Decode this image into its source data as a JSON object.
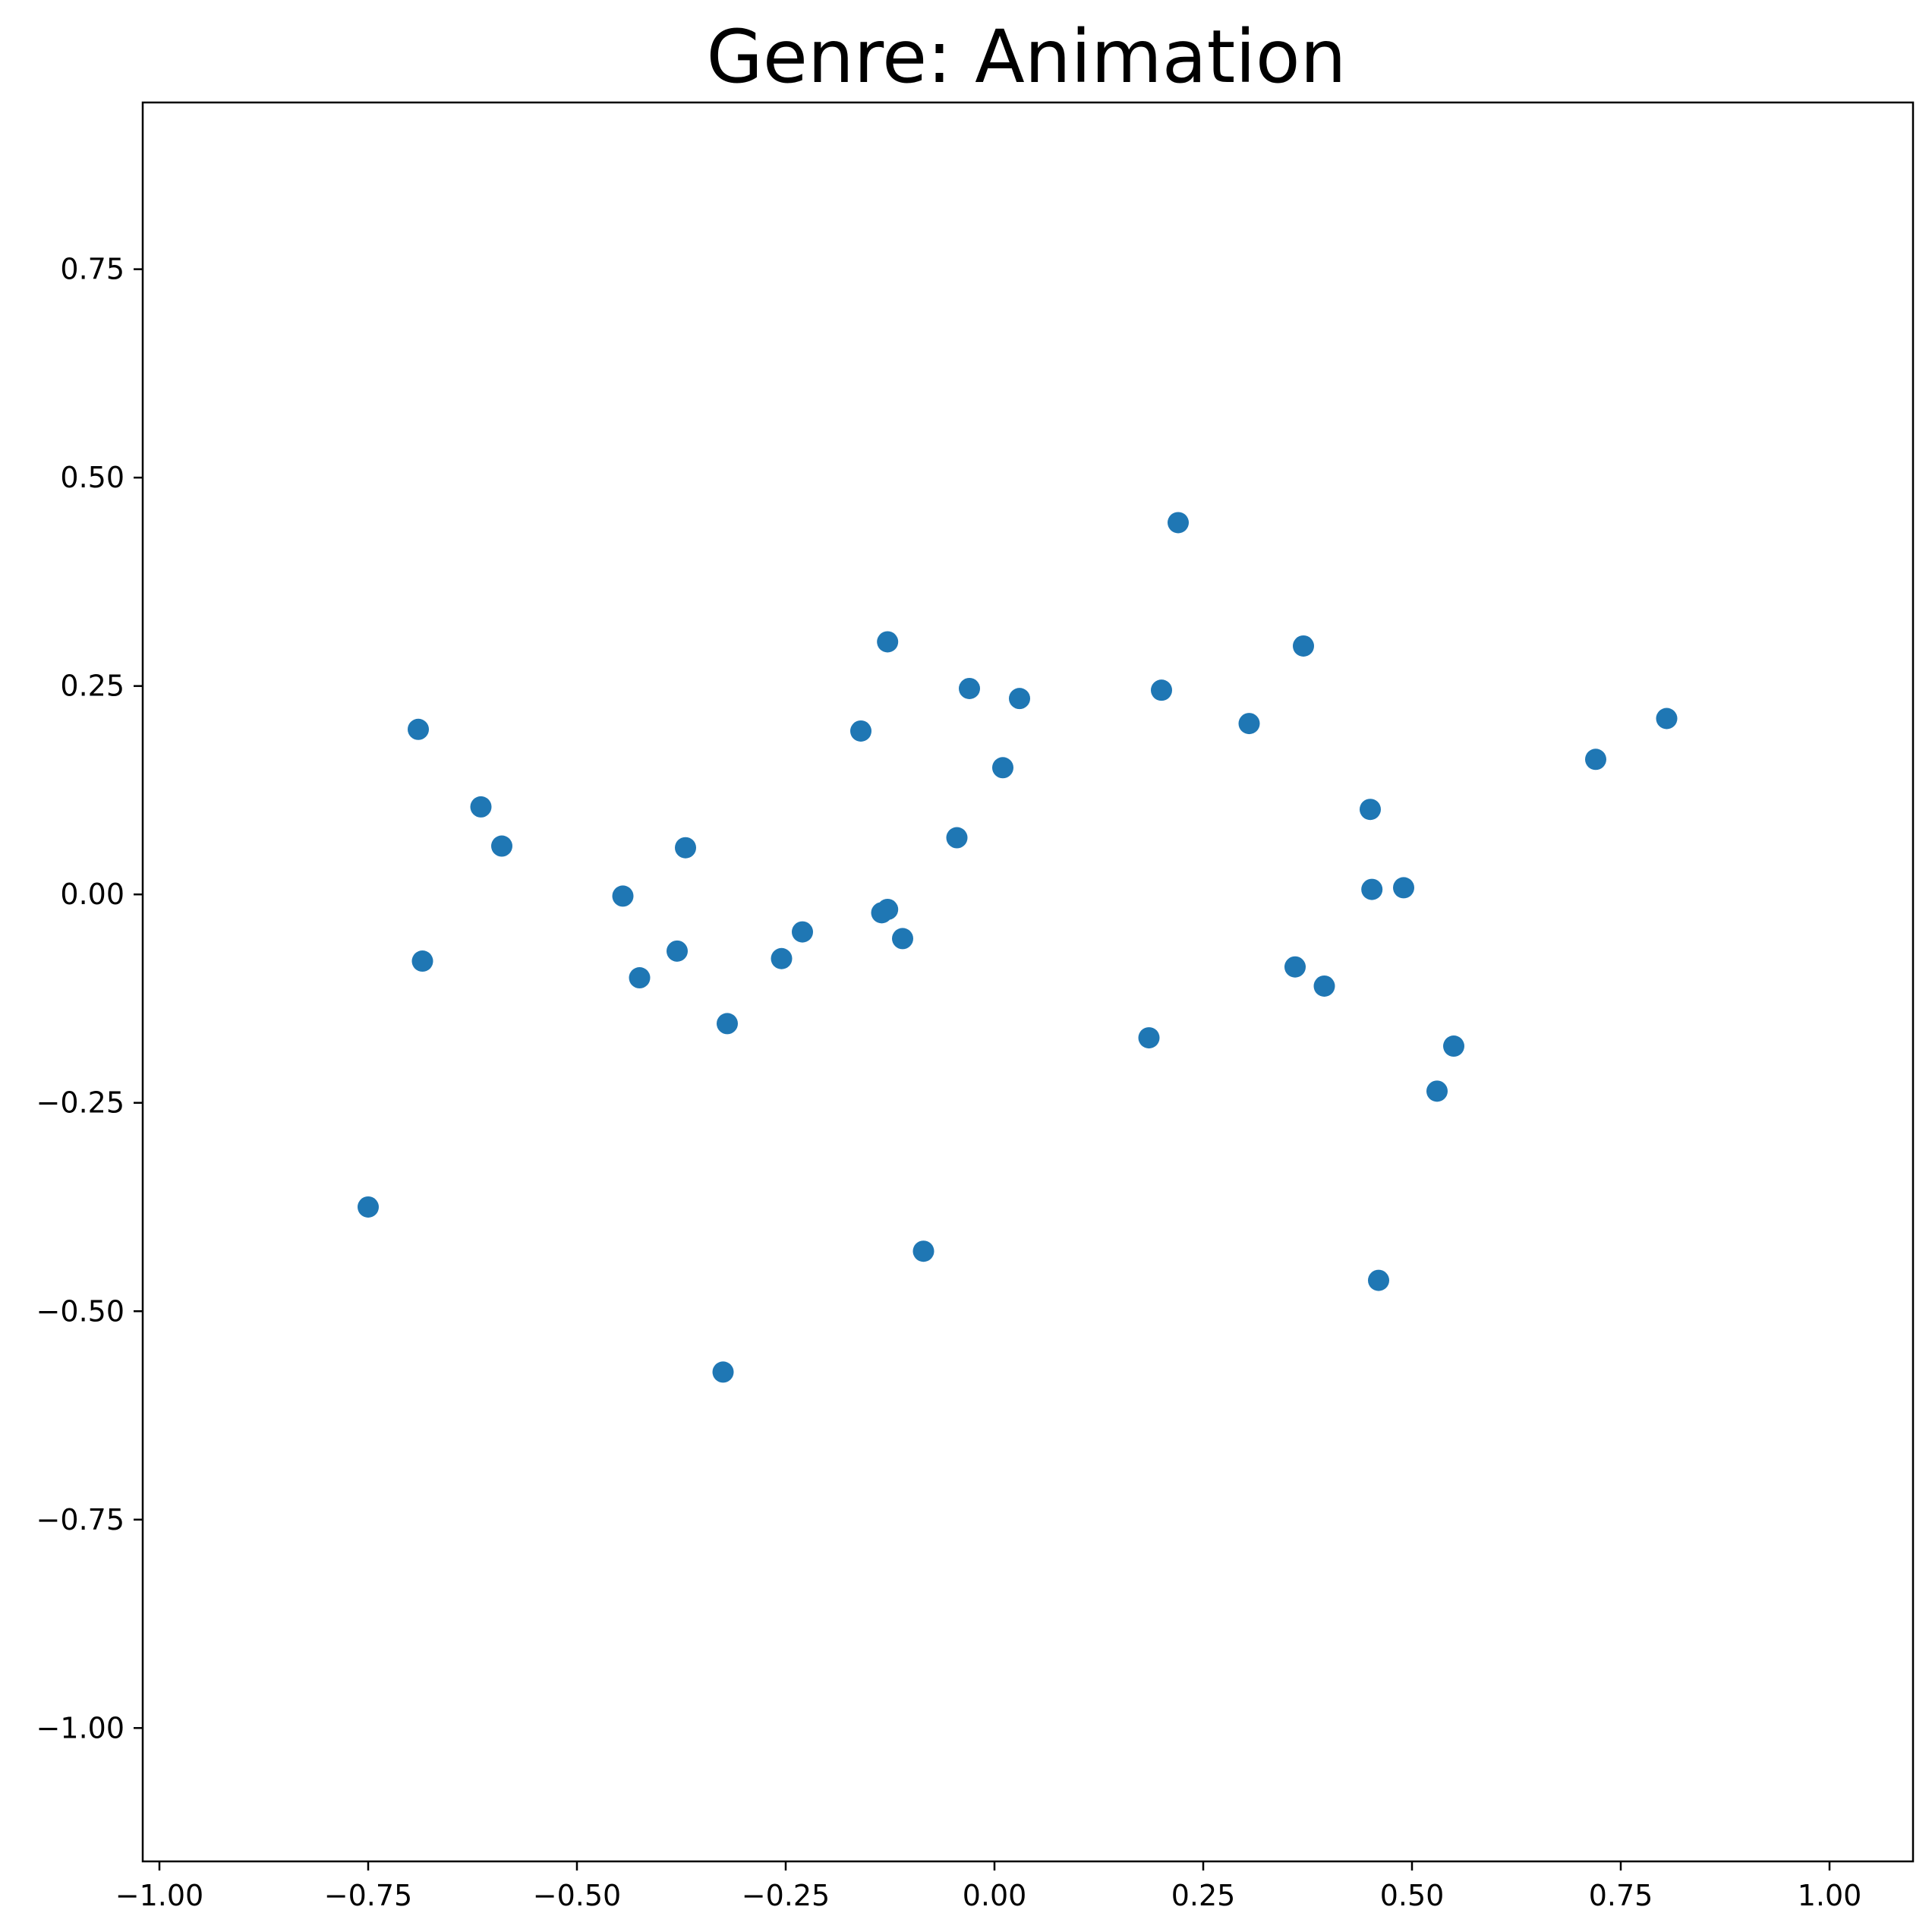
{
  "chart_data": {
    "type": "scatter",
    "title": "Genre: Animation",
    "xlabel": "",
    "ylabel": "",
    "xlim": [
      -1.02,
      1.1
    ],
    "ylim": [
      -1.16,
      0.95
    ],
    "grid": false,
    "marker_color": "#1f77b4",
    "x_ticks": [
      -1.0,
      -0.75,
      -0.5,
      -0.25,
      0.0,
      0.25,
      0.5,
      0.75,
      1.0
    ],
    "x_tick_labels": [
      "−1.00",
      "−0.75",
      "−0.50",
      "−0.25",
      "0.00",
      "0.25",
      "0.50",
      "0.75",
      "1.00"
    ],
    "y_ticks": [
      -1.0,
      -0.75,
      -0.5,
      -0.25,
      0.0,
      0.25,
      0.5,
      0.75
    ],
    "y_tick_labels": [
      "−1.00",
      "−0.75",
      "−0.50",
      "−0.25",
      "0.00",
      "0.25",
      "0.50",
      "0.75"
    ],
    "points": [
      {
        "x": -0.75,
        "y": -0.375
      },
      {
        "x": -0.69,
        "y": 0.198
      },
      {
        "x": -0.685,
        "y": -0.08
      },
      {
        "x": -0.615,
        "y": 0.105
      },
      {
        "x": -0.59,
        "y": 0.058
      },
      {
        "x": -0.445,
        "y": -0.002
      },
      {
        "x": -0.425,
        "y": -0.1
      },
      {
        "x": -0.38,
        "y": -0.068
      },
      {
        "x": -0.37,
        "y": 0.056
      },
      {
        "x": -0.32,
        "y": -0.155
      },
      {
        "x": -0.325,
        "y": -0.573
      },
      {
        "x": -0.255,
        "y": -0.077
      },
      {
        "x": -0.23,
        "y": -0.045
      },
      {
        "x": -0.16,
        "y": 0.196
      },
      {
        "x": -0.135,
        "y": -0.022
      },
      {
        "x": -0.128,
        "y": -0.018
      },
      {
        "x": -0.128,
        "y": 0.303
      },
      {
        "x": -0.11,
        "y": -0.053
      },
      {
        "x": -0.085,
        "y": -0.428
      },
      {
        "x": -0.045,
        "y": 0.068
      },
      {
        "x": -0.03,
        "y": 0.247
      },
      {
        "x": 0.01,
        "y": 0.152
      },
      {
        "x": 0.03,
        "y": 0.235
      },
      {
        "x": 0.185,
        "y": -0.172
      },
      {
        "x": 0.2,
        "y": 0.245
      },
      {
        "x": 0.22,
        "y": 0.446
      },
      {
        "x": 0.305,
        "y": 0.205
      },
      {
        "x": 0.36,
        "y": -0.087
      },
      {
        "x": 0.37,
        "y": 0.298
      },
      {
        "x": 0.395,
        "y": -0.11
      },
      {
        "x": 0.45,
        "y": 0.102
      },
      {
        "x": 0.452,
        "y": 0.006
      },
      {
        "x": 0.46,
        "y": -0.463
      },
      {
        "x": 0.49,
        "y": 0.008
      },
      {
        "x": 0.53,
        "y": -0.236
      },
      {
        "x": 0.55,
        "y": -0.182
      },
      {
        "x": 0.72,
        "y": 0.162
      },
      {
        "x": 0.805,
        "y": 0.211
      }
    ]
  }
}
